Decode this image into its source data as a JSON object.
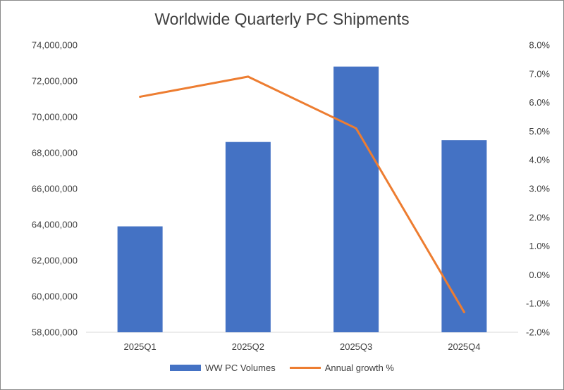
{
  "chart_data": {
    "type": "bar",
    "title": "Worldwide Quarterly PC Shipments",
    "categories": [
      "2025Q1",
      "2025Q2",
      "2025Q3",
      "2025Q4"
    ],
    "series": [
      {
        "name": "WW PC Volumes",
        "type": "bar",
        "axis": "left",
        "color": "#4472C4",
        "values": [
          63900000,
          68600000,
          72800000,
          68700000
        ]
      },
      {
        "name": "Annual growth %",
        "type": "line",
        "axis": "right",
        "color": "#ED7D31",
        "values": [
          6.2,
          6.9,
          5.1,
          -1.3
        ]
      }
    ],
    "y_left": {
      "min": 58000000,
      "max": 74000000,
      "ticks": [
        "58,000,000",
        "60,000,000",
        "62,000,000",
        "64,000,000",
        "66,000,000",
        "68,000,000",
        "70,000,000",
        "72,000,000",
        "74,000,000"
      ]
    },
    "y_right": {
      "min": -2.0,
      "max": 8.0,
      "ticks": [
        "-2.0%",
        "-1.0%",
        "0.0%",
        "1.0%",
        "2.0%",
        "3.0%",
        "4.0%",
        "5.0%",
        "6.0%",
        "7.0%",
        "8.0%"
      ]
    },
    "legend_position": "bottom",
    "grid": false
  }
}
